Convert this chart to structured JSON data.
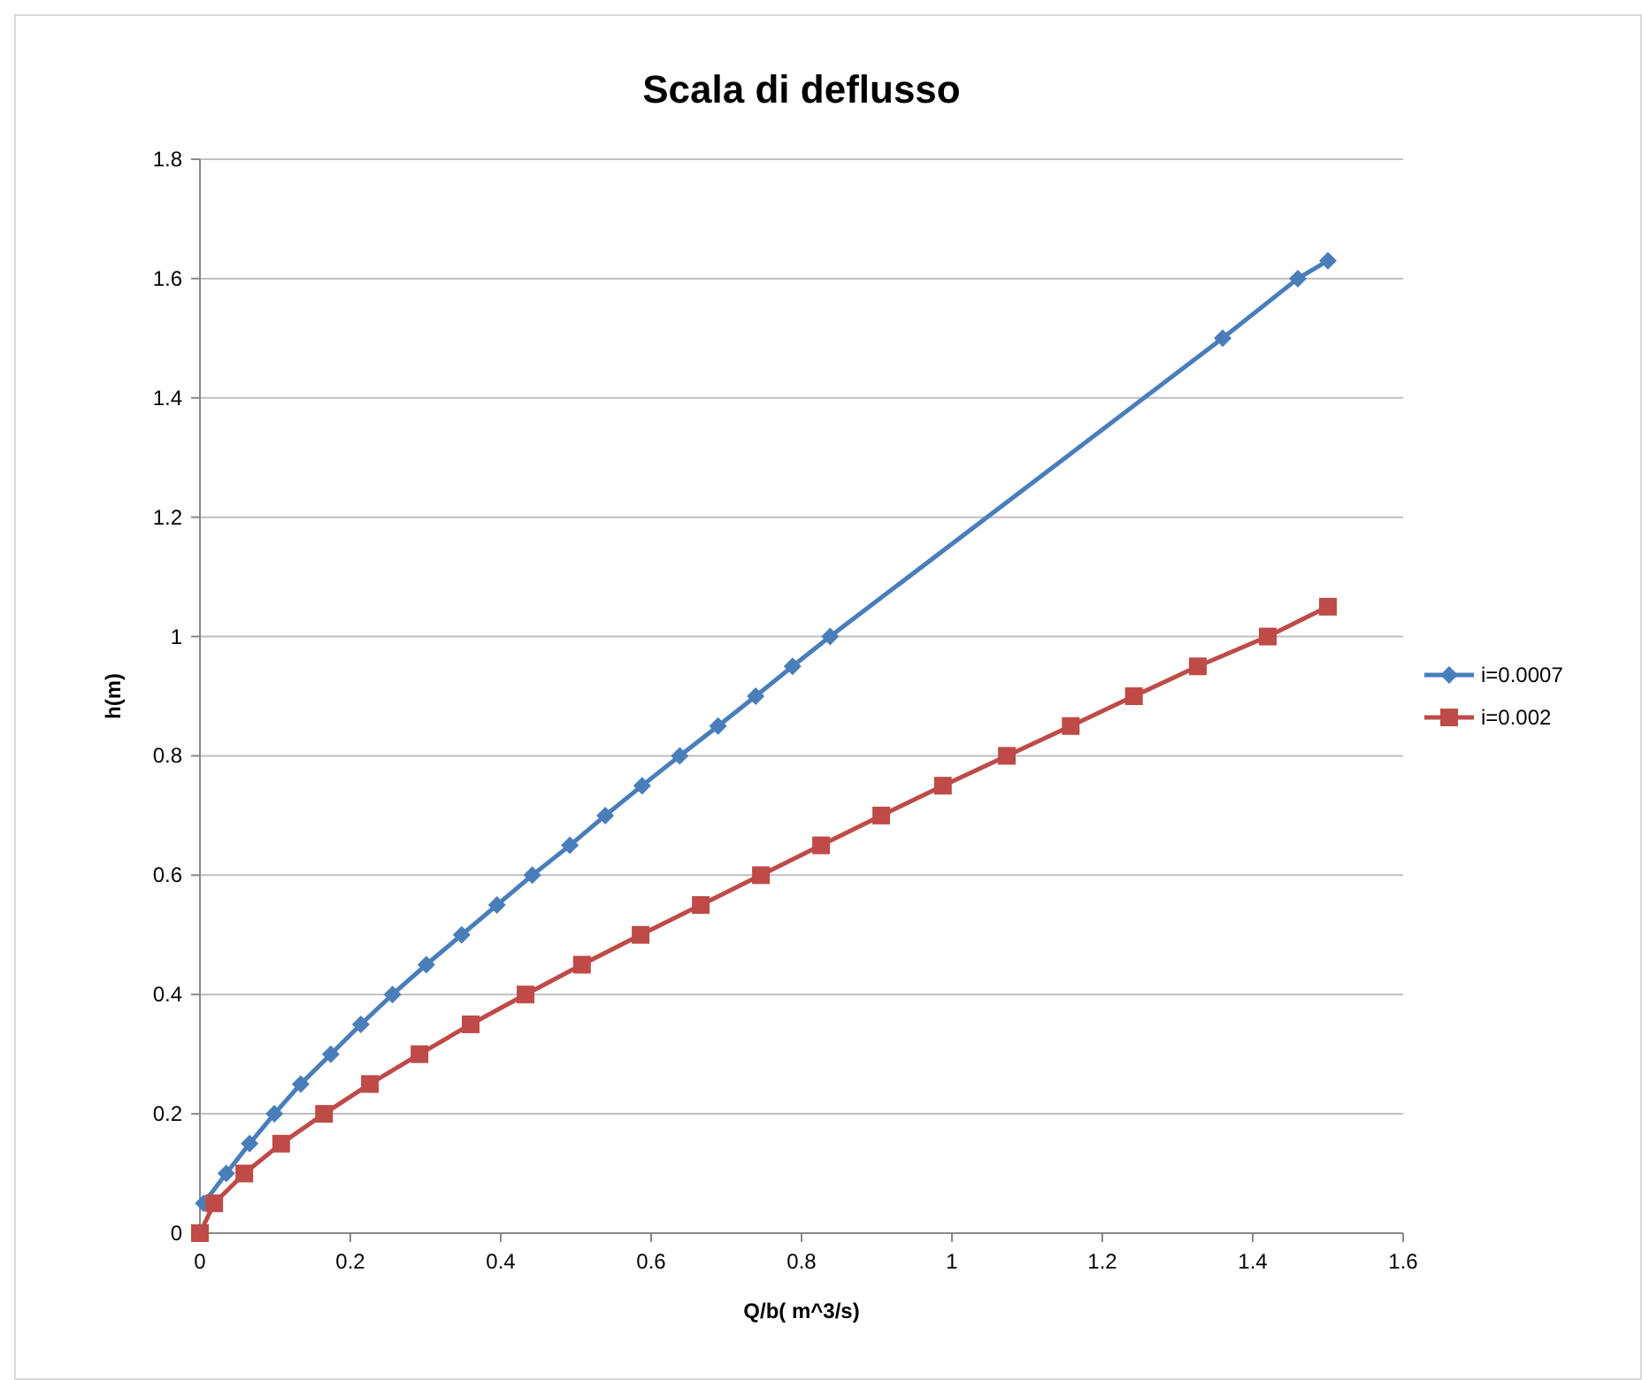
{
  "chart_data": {
    "type": "line",
    "title": "Scala di deflusso",
    "xlabel": "Q/b( m^3/s)",
    "ylabel": "h(m)",
    "xlim": [
      0,
      1.6
    ],
    "xticks": [
      0,
      0.2,
      0.4,
      0.6,
      0.8,
      1,
      1.2,
      1.4,
      1.6
    ],
    "ylim": [
      0,
      1.8
    ],
    "yticks": [
      0,
      0.2,
      0.4,
      0.6,
      0.8,
      1,
      1.2,
      1.4,
      1.6,
      1.8
    ],
    "grid": "y",
    "legend": "right",
    "line_style": "solid",
    "series": [
      {
        "name": "i=0.0007",
        "color": "#4a7ebb",
        "marker": "diamond",
        "x": [
          0.005,
          0.035,
          0.066,
          0.099,
          0.134,
          0.174,
          0.214,
          0.256,
          0.301,
          0.348,
          0.395,
          0.442,
          0.492,
          0.539,
          0.588,
          0.638,
          0.689,
          0.739,
          0.788,
          0.838,
          1.36,
          1.46,
          1.5
        ],
        "values": [
          0.05,
          0.1,
          0.15,
          0.2,
          0.25,
          0.3,
          0.35,
          0.4,
          0.45,
          0.5,
          0.55,
          0.6,
          0.65,
          0.7,
          0.75,
          0.8,
          0.85,
          0.9,
          0.95,
          1.0,
          1.5,
          1.6,
          1.63
        ]
      },
      {
        "name": "i=0.002",
        "color": "#be4b48",
        "marker": "square",
        "x": [
          0,
          0.019,
          0.059,
          0.108,
          0.165,
          0.226,
          0.292,
          0.36,
          0.433,
          0.508,
          0.586,
          0.666,
          0.746,
          0.826,
          0.906,
          0.988,
          1.073,
          1.158,
          1.242,
          1.327,
          1.42,
          1.5
        ],
        "values": [
          0,
          0.05,
          0.1,
          0.15,
          0.2,
          0.25,
          0.3,
          0.35,
          0.4,
          0.45,
          0.5,
          0.55,
          0.6,
          0.65,
          0.7,
          0.75,
          0.8,
          0.85,
          0.9,
          0.95,
          1.0,
          1.05
        ]
      }
    ]
  }
}
